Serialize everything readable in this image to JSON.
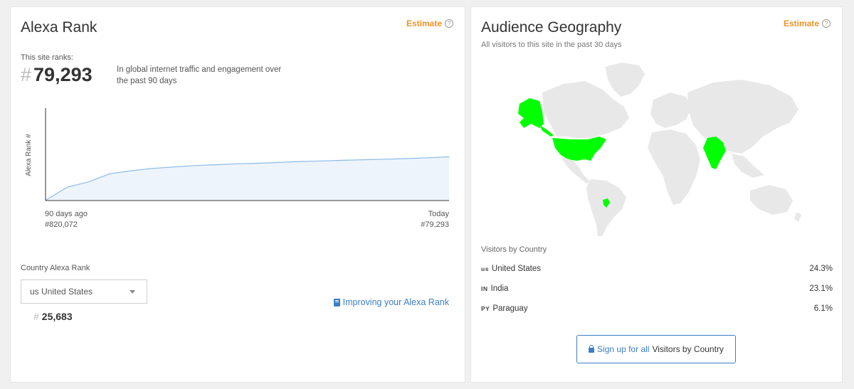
{
  "left_panel": {
    "title": "Alexa Rank",
    "estimate_label": "Estimate",
    "ranks_label": "This site ranks:",
    "global_rank": "79,293",
    "rank_description": "In global internet traffic and engagement over the past 90 days",
    "chart": {
      "y_label": "Alexa Rank #",
      "start_label": "90 days ago",
      "start_value": "#820,072",
      "end_label": "Today",
      "end_value": "#79,293"
    },
    "country_rank_label": "Country Alexa Rank",
    "country_select_value": "us United States",
    "country_rank": "25,683",
    "improve_link": "Improving your Alexa Rank"
  },
  "right_panel": {
    "title": "Audience Geography",
    "estimate_label": "Estimate",
    "subtitle": "All visitors to this site in the past 30 days",
    "visitors_by_country_label": "Visitors by Country",
    "countries": [
      {
        "flag": "us",
        "name": "United States",
        "percent": "24.3%"
      },
      {
        "flag": "IN",
        "name": "India",
        "percent": "23.1%"
      },
      {
        "flag": "PY",
        "name": "Paraguay",
        "percent": "6.1%"
      }
    ],
    "signup_link": "Sign up for all",
    "signup_rest": "Visitors by Country"
  },
  "colors": {
    "accent_orange": "#f0932b",
    "link_blue": "#3c7ec4",
    "map_land": "#e8e8e8",
    "map_highlight": "#00ff00",
    "chart_line": "#8bbbe8",
    "chart_fill": "#eef4fc"
  },
  "chart_data": {
    "type": "area",
    "x": [
      0,
      1,
      2,
      3,
      4,
      5,
      6,
      7,
      8,
      9,
      10,
      11,
      12,
      13,
      14,
      15,
      16,
      17,
      18,
      19
    ],
    "values": [
      820072,
      600000,
      510000,
      370000,
      320000,
      280000,
      255000,
      230000,
      215000,
      200000,
      190000,
      175000,
      160000,
      150000,
      140000,
      130000,
      120000,
      110000,
      95000,
      79293
    ],
    "title": "",
    "xlabel": "",
    "ylabel": "Alexa Rank #",
    "y_inverted": true,
    "grid": false
  }
}
